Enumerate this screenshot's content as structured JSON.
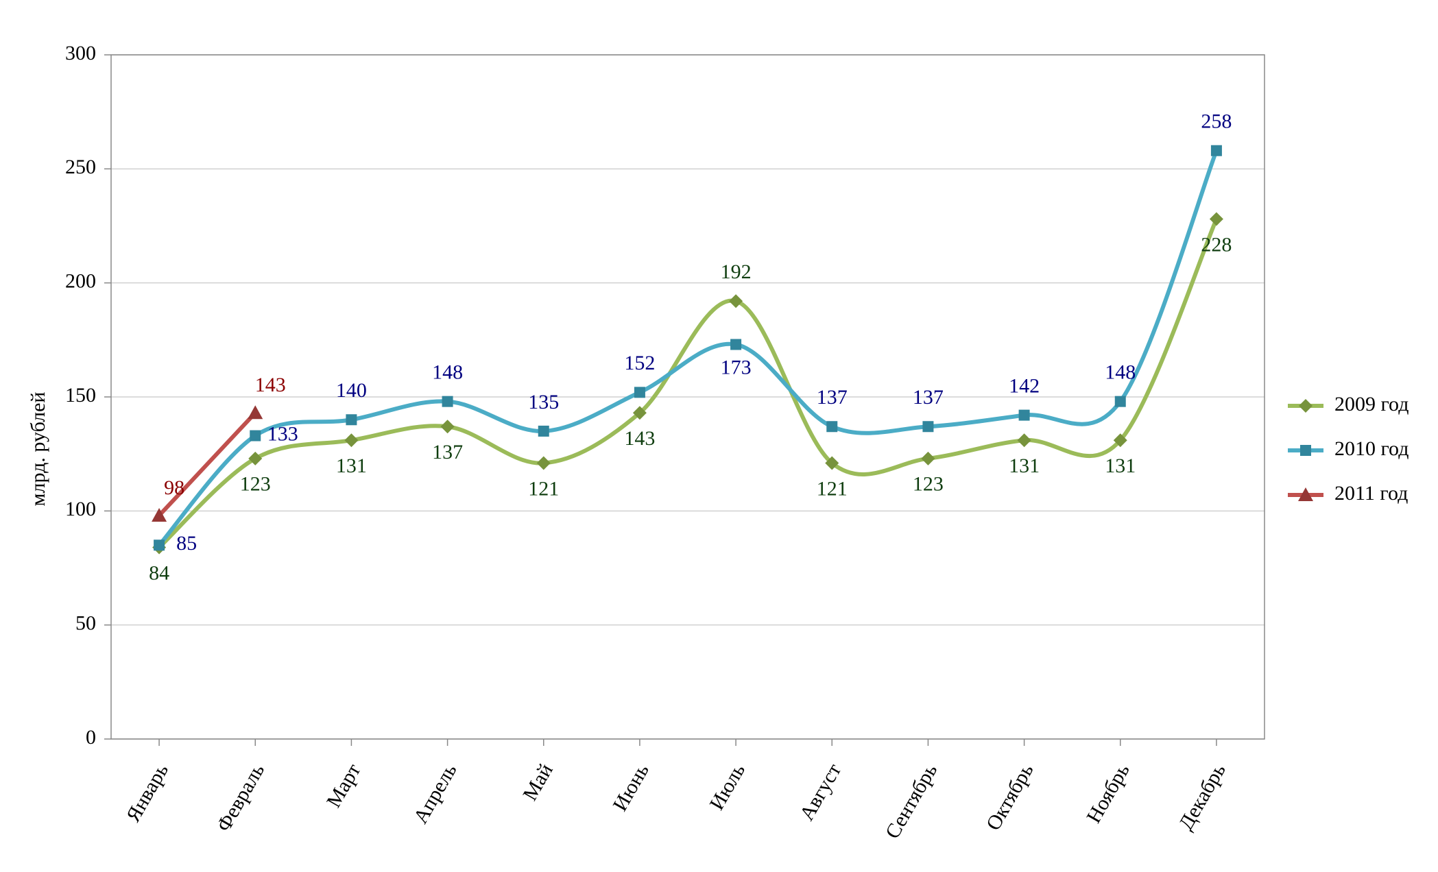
{
  "chart_data": {
    "type": "line",
    "y_label": "млрд. рублей",
    "categories": [
      "Январь",
      "Февраль",
      "Март",
      "Апрель",
      "Май",
      "Июнь",
      "Июль",
      "Август",
      "Сентябрь",
      "Октябрь",
      "Ноябрь",
      "Декабрь"
    ],
    "series": [
      {
        "name": "2009 год",
        "color": "#9bbb59",
        "marker_color": "#77933c",
        "label_color": "#0f3d0f",
        "marker": "diamond",
        "values": [
          84,
          123,
          131,
          137,
          121,
          143,
          192,
          121,
          123,
          131,
          131,
          228
        ]
      },
      {
        "name": "2010 год",
        "color": "#4bacc6",
        "marker_color": "#31859c",
        "label_color": "#000080",
        "marker": "square",
        "values": [
          85,
          133,
          140,
          148,
          135,
          152,
          173,
          137,
          137,
          142,
          148,
          258
        ]
      },
      {
        "name": "2011 год",
        "color": "#c0504d",
        "marker_color": "#953735",
        "label_color": "#8b0000",
        "marker": "triangle",
        "values": [
          98,
          143,
          null,
          null,
          null,
          null,
          null,
          null,
          null,
          null,
          null,
          null
        ]
      }
    ],
    "ylim": [
      0,
      300
    ],
    "yticks": [
      0,
      50,
      100,
      150,
      200,
      250,
      300
    ],
    "grid": true,
    "smooth": true,
    "legend": "right"
  }
}
